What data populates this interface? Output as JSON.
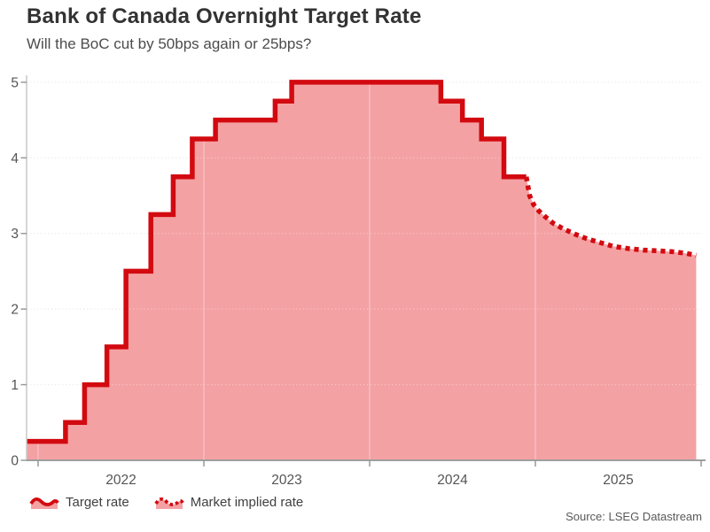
{
  "header": {
    "title": "Bank of Canada Overnight Target Rate",
    "subtitle": "Will the BoC cut by 50bps again or 25bps?"
  },
  "legend": {
    "target_label": "Target rate",
    "implied_label": "Market implied rate"
  },
  "footer": {
    "source": "Source: LSEG Datastream"
  },
  "colors": {
    "line_red": "#d20a10",
    "fill_pink": "#f4a1a3",
    "grid": "#dcdcdc",
    "axis_bottom": "#9e9e9e",
    "axis_left": "#c8c8c8",
    "tick": "#999999",
    "tick_label": "#555555"
  },
  "chart_data": {
    "type": "area",
    "title": "Bank of Canada Overnight Target Rate",
    "subtitle": "Will the BoC cut by 50bps again or 25bps?",
    "xlabel": "",
    "ylabel": "",
    "ylim": [
      0,
      5
    ],
    "yticks": [
      0,
      1,
      2,
      3,
      4,
      5
    ],
    "xticks": [
      "2022",
      "2023",
      "2024",
      "2025"
    ],
    "grid": "horizontal-dotted",
    "legend_position": "bottom-left",
    "series": [
      {
        "name": "Target rate",
        "style": "step-solid",
        "points": [
          [
            2021.931,
            0.25
          ],
          [
            2022.165,
            0.5
          ],
          [
            2022.28,
            1.0
          ],
          [
            2022.415,
            1.5
          ],
          [
            2022.53,
            2.5
          ],
          [
            2022.68,
            3.25
          ],
          [
            2022.815,
            3.75
          ],
          [
            2022.93,
            4.25
          ],
          [
            2023.07,
            4.5
          ],
          [
            2023.43,
            4.75
          ],
          [
            2023.53,
            5.0
          ],
          [
            2024.43,
            4.75
          ],
          [
            2024.56,
            4.5
          ],
          [
            2024.675,
            4.25
          ],
          [
            2024.81,
            3.75
          ]
        ],
        "end_x": 2024.945
      },
      {
        "name": "Market implied rate",
        "style": "line-dashed",
        "points": [
          [
            2024.945,
            3.75
          ],
          [
            2024.965,
            3.5
          ],
          [
            2024.99,
            3.38
          ],
          [
            2025.02,
            3.3
          ],
          [
            2025.06,
            3.22
          ],
          [
            2025.11,
            3.13
          ],
          [
            2025.17,
            3.06
          ],
          [
            2025.24,
            2.99
          ],
          [
            2025.31,
            2.93
          ],
          [
            2025.39,
            2.88
          ],
          [
            2025.47,
            2.83
          ],
          [
            2025.56,
            2.8
          ],
          [
            2025.65,
            2.78
          ],
          [
            2025.74,
            2.77
          ],
          [
            2025.82,
            2.76
          ],
          [
            2025.9,
            2.74
          ],
          [
            2025.97,
            2.71
          ]
        ]
      }
    ],
    "source": "Source: LSEG Datastream"
  }
}
